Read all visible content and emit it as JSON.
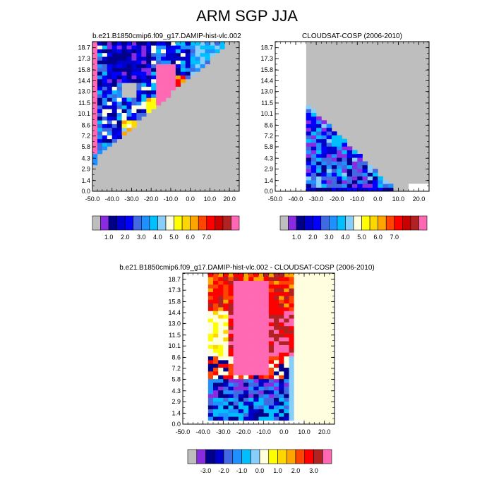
{
  "title": "ARM SGP JJA",
  "colors": {
    "model_palette": [
      "#bebebe",
      "#8a2be2",
      "#00008b",
      "#0000cd",
      "#0000ff",
      "#4169e1",
      "#1e90ff",
      "#00bfff",
      "#87cefa",
      "#ffffe0",
      "#ffff00",
      "#ffd700",
      "#ffa500",
      "#ff4500",
      "#ff0000",
      "#cd0000",
      "#b22222",
      "#ff69b4"
    ],
    "diff_palette": [
      "#bebebe",
      "#8a2be2",
      "#00008b",
      "#0000cd",
      "#4169e1",
      "#1e90ff",
      "#00bfff",
      "#87cefa",
      "#ffffe0",
      "#ffff00",
      "#ffd700",
      "#ffa500",
      "#ff4500",
      "#ff0000",
      "#b22222",
      "#ff69b4"
    ],
    "missing": "#bebebe"
  },
  "chart_data": [
    {
      "type": "heatmap",
      "panel": "model",
      "title": "b.e21.B1850cmip6.f09_g17.DAMIP-hist-vlc.002",
      "x_ticks": [
        "-50.0",
        "-40.0",
        "-30.0",
        "-20.0",
        "-10.0",
        "0.0",
        "10.0",
        "20.0"
      ],
      "y_ticks": [
        "0.0",
        "1.4",
        "2.9",
        "4.3",
        "5.8",
        "7.2",
        "8.6",
        "10.1",
        "11.5",
        "13.0",
        "14.4",
        "15.8",
        "17.3",
        "18.7"
      ],
      "xlim": [
        -50,
        25
      ],
      "ylim": [
        0,
        19.5
      ],
      "colorbar_labels": [
        "1.0",
        "2.0",
        "3.0",
        "4.0",
        "5.0",
        "6.0",
        "7.0"
      ]
    },
    {
      "type": "heatmap",
      "panel": "obs",
      "title": "CLOUDSAT-COSP (2006-2010)",
      "x_ticks": [
        "-50.0",
        "-40.0",
        "-30.0",
        "-20.0",
        "-10.0",
        "0.0",
        "10.0",
        "20.0"
      ],
      "y_ticks": [
        "0.0",
        "1.4",
        "2.9",
        "4.3",
        "5.8",
        "7.2",
        "8.6",
        "10.1",
        "11.5",
        "13.0",
        "14.4",
        "15.8",
        "17.3",
        "18.7"
      ],
      "xlim": [
        -50,
        25
      ],
      "ylim": [
        0,
        19.5
      ],
      "colorbar_labels": [
        "1.0",
        "2.0",
        "3.0",
        "4.0",
        "5.0",
        "6.0",
        "7.0"
      ]
    },
    {
      "type": "heatmap",
      "panel": "diff",
      "title": "b.e21.B1850cmip6.f09_g17.DAMIP-hist-vlc.002 - CLOUDSAT-COSP (2006-2010)",
      "x_ticks": [
        "-50.0",
        "-40.0",
        "-30.0",
        "-20.0",
        "-10.0",
        "0.0",
        "10.0",
        "20.0"
      ],
      "y_ticks": [
        "0.0",
        "1.4",
        "2.9",
        "4.3",
        "5.8",
        "7.2",
        "8.6",
        "10.1",
        "11.5",
        "13.0",
        "14.4",
        "15.8",
        "17.3",
        "18.7"
      ],
      "xlim": [
        -50,
        25
      ],
      "ylim": [
        0,
        19.5
      ],
      "colorbar_labels": [
        "-3.0",
        "-2.0",
        "-1.0",
        "0.0",
        "1.0",
        "2.0",
        "3.0"
      ]
    }
  ]
}
